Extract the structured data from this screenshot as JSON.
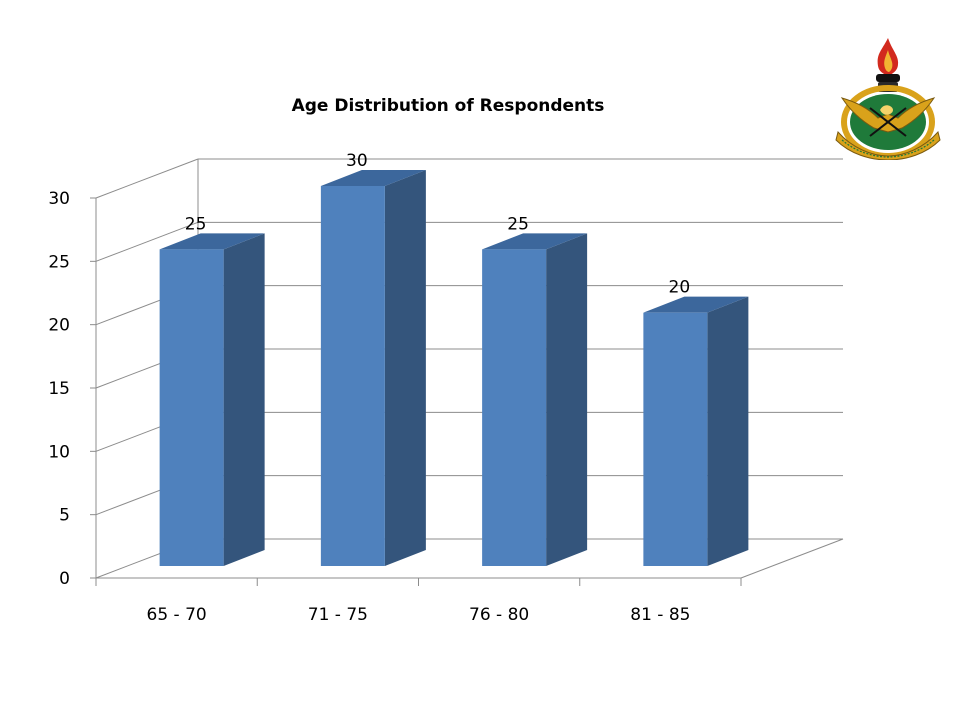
{
  "chart_data": {
    "type": "bar",
    "style": "3d-clustered-column",
    "title": "Age Distribution of Respondents",
    "categories": [
      "65 - 70",
      "71 - 75",
      "76 - 80",
      "81 - 85"
    ],
    "series": [
      {
        "values": [
          25,
          30,
          25,
          20
        ]
      }
    ],
    "ylim": [
      0,
      30
    ],
    "yticks": [
      0,
      5,
      10,
      15,
      20,
      25,
      30
    ],
    "data_labels": true,
    "grid": true,
    "legend": "none",
    "colors": {
      "bar_front": "#4f81bd",
      "bar_side": "#34557c",
      "bar_top": "#3c679c",
      "grid": "#8c8c8c"
    }
  },
  "logo": {
    "name": "university-crest",
    "ribbon_text": "NYANSAPO · W.J. SAME NO · NYANSAPO",
    "colors": {
      "gold": "#d9a21b",
      "green": "#1f7a3a",
      "red": "#d22a1e",
      "black": "#111111"
    }
  }
}
